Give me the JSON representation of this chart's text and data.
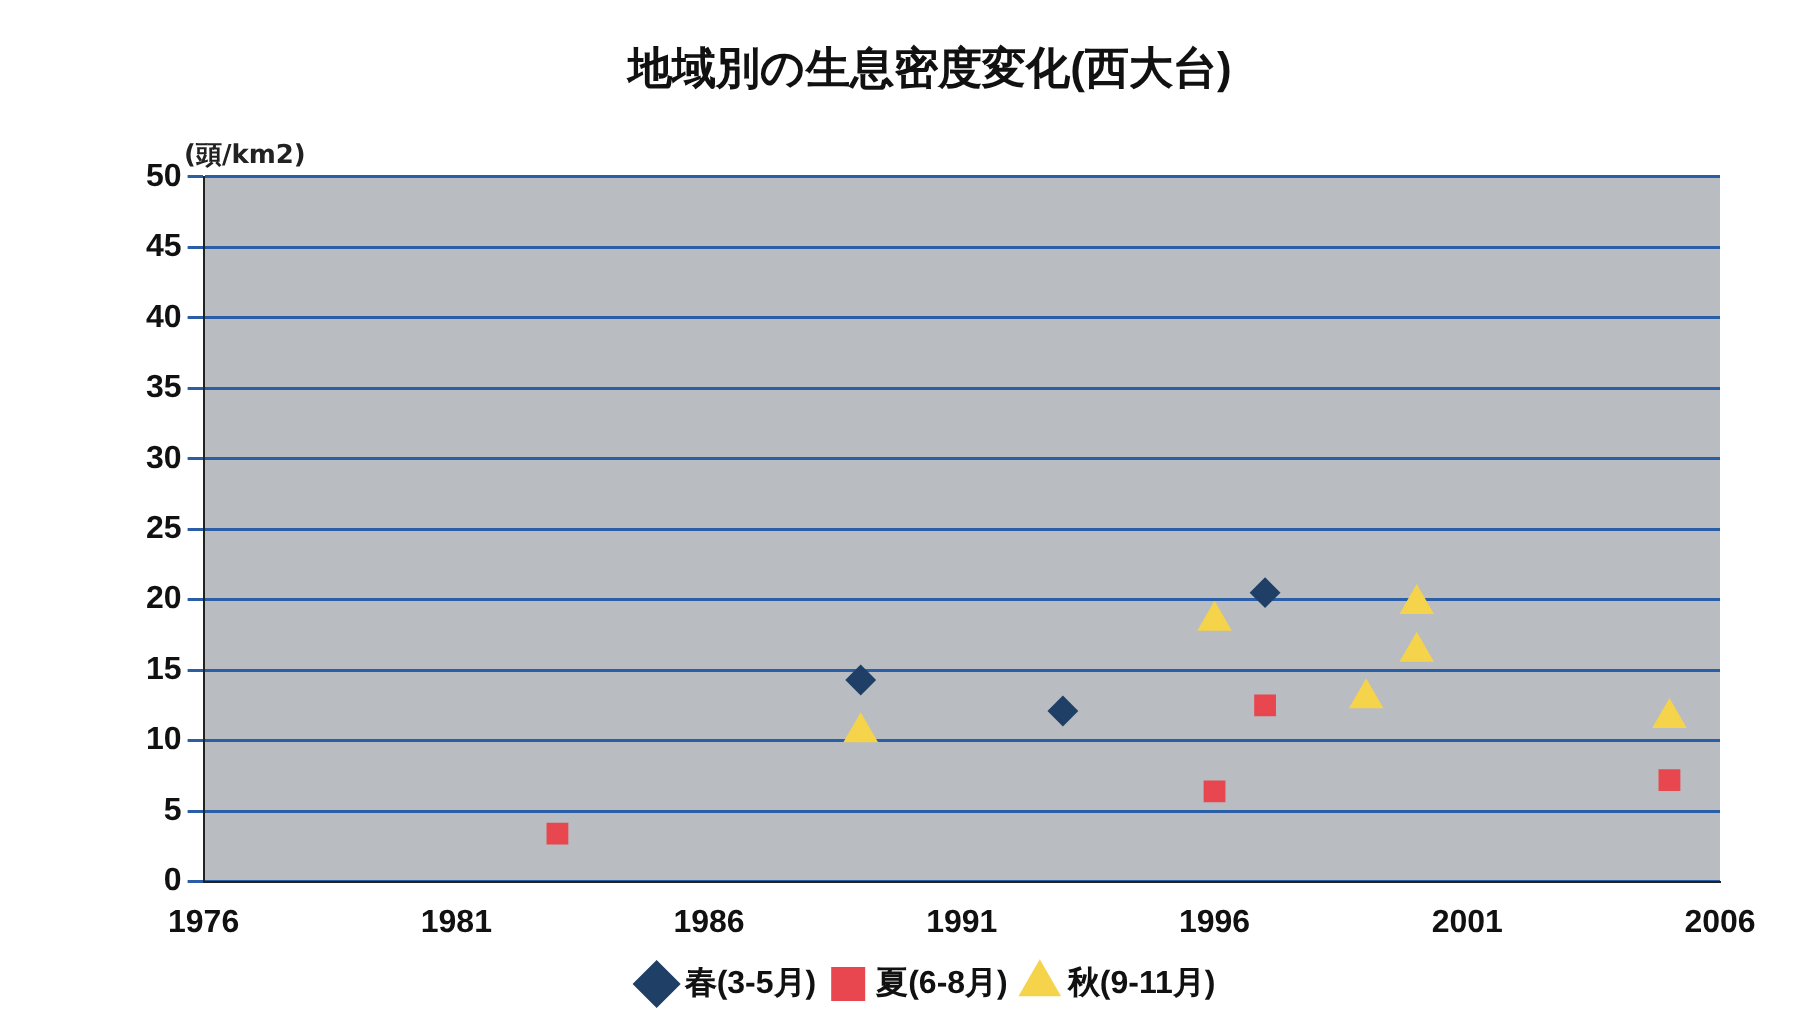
{
  "chart_data": {
    "type": "scatter",
    "title": "地域別の生息密度変化(西大台)",
    "ylabel": "(頭/km2)",
    "xlim": [
      1976,
      2006
    ],
    "xticks": [
      1976,
      1981,
      1986,
      1991,
      1996,
      2001,
      2006
    ],
    "ylim": [
      0,
      50
    ],
    "yticks": [
      0,
      5,
      10,
      15,
      20,
      25,
      30,
      35,
      40,
      45,
      50
    ],
    "grid": "y",
    "legend": "bottom",
    "series": [
      {
        "name": "春(3-5月)",
        "color": "#1f3f66",
        "marker": "diamond",
        "x": [
          1989,
          1993,
          1997
        ],
        "values": [
          14.3,
          12.1,
          20.5
        ]
      },
      {
        "name": "夏(6-8月)",
        "color": "#e8474f",
        "marker": "square",
        "x": [
          1983,
          1996,
          1997,
          2005
        ],
        "values": [
          3.4,
          6.4,
          12.5,
          7.2
        ]
      },
      {
        "name": "秋(9-11月)",
        "color": "#f5d34a",
        "marker": "triangle",
        "x": [
          1989,
          1996,
          1999,
          2000,
          2000,
          2005
        ],
        "values": [
          10.6,
          18.5,
          13,
          19.7,
          16.3,
          11.6
        ]
      }
    ]
  }
}
